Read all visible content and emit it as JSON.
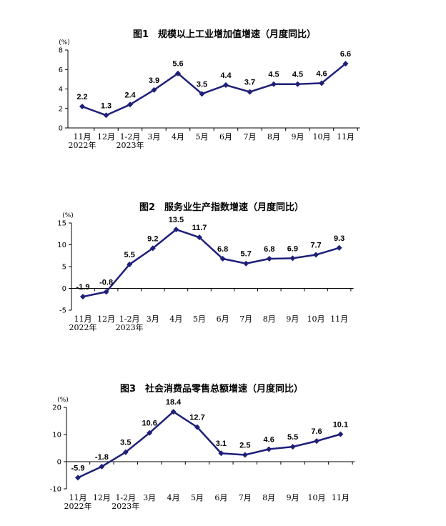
{
  "chart_data": [
    {
      "type": "line",
      "title": "图1　规模以上工业增加值增速（月度同比）",
      "unit": "(%)",
      "categories": [
        "11月",
        "12月",
        "1-2月",
        "3月",
        "4月",
        "5月",
        "6月",
        "7月",
        "8月",
        "9月",
        "10月",
        "11月"
      ],
      "year_labels": [
        "2022年",
        "",
        "2023年",
        "",
        "",
        "",
        "",
        "",
        "",
        "",
        "",
        ""
      ],
      "values": [
        2.2,
        1.3,
        2.4,
        3.9,
        5.6,
        3.5,
        4.4,
        3.7,
        4.5,
        4.5,
        4.6,
        6.6
      ],
      "value_labels": [
        "2.2",
        "1.3",
        "2.4",
        "3.9",
        "5.6",
        "3.5",
        "4.4",
        "3.7",
        "4.5",
        "4.5",
        "4.6",
        "6.6"
      ],
      "ylim": [
        0,
        8
      ],
      "yticks": [
        0,
        2,
        4,
        6,
        8
      ],
      "ytick_labels": [
        "0",
        "2",
        "4",
        "6",
        "8"
      ],
      "color": "#1f1f7a"
    },
    {
      "type": "line",
      "title": "图2　服务业生产指数增速（月度同比）",
      "unit": "(%)",
      "categories": [
        "11月",
        "12月",
        "1-2月",
        "3月",
        "4月",
        "5月",
        "6月",
        "7月",
        "8月",
        "9月",
        "10月",
        "11月"
      ],
      "year_labels": [
        "2022年",
        "",
        "2023年",
        "",
        "",
        "",
        "",
        "",
        "",
        "",
        "",
        ""
      ],
      "values": [
        -1.9,
        -0.8,
        5.5,
        9.2,
        13.5,
        11.7,
        6.8,
        5.7,
        6.8,
        6.9,
        7.7,
        9.3
      ],
      "value_labels": [
        "-1.9",
        "-0.8",
        "5.5",
        "9.2",
        "13.5",
        "11.7",
        "6.8",
        "5.7",
        "6.8",
        "6.9",
        "7.7",
        "9.3"
      ],
      "ylim": [
        -5,
        15
      ],
      "yticks": [
        -5,
        0,
        5,
        10,
        15
      ],
      "ytick_labels": [
        "-5",
        "0",
        "5",
        "10",
        "15"
      ],
      "color": "#1f1f7a"
    },
    {
      "type": "line",
      "title": "图3　社会消费品零售总额增速（月度同比）",
      "unit": "(%)",
      "categories": [
        "11月",
        "12月",
        "1-2月",
        "3月",
        "4月",
        "5月",
        "6月",
        "7月",
        "8月",
        "9月",
        "10月",
        "11月"
      ],
      "year_labels": [
        "2022年",
        "",
        "2023年",
        "",
        "",
        "",
        "",
        "",
        "",
        "",
        "",
        ""
      ],
      "values": [
        -5.9,
        -1.8,
        3.5,
        10.6,
        18.4,
        12.7,
        3.1,
        2.5,
        4.6,
        5.5,
        7.6,
        10.1
      ],
      "value_labels": [
        "-5.9",
        "-1.8",
        "3.5",
        "10.6",
        "18.4",
        "12.7",
        "3.1",
        "2.5",
        "4.6",
        "5.5",
        "7.6",
        "10.1"
      ],
      "ylim": [
        -10,
        20
      ],
      "yticks": [
        -10,
        0,
        10,
        20
      ],
      "ytick_labels": [
        "-10",
        "0",
        "10",
        "20"
      ],
      "color": "#1f1f7a"
    }
  ]
}
